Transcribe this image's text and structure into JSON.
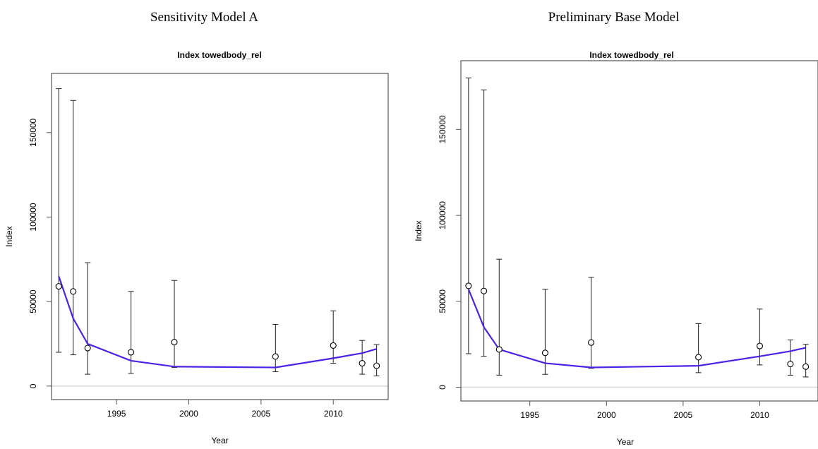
{
  "chart_data": [
    {
      "type": "line",
      "heading": "Sensitivity Model A",
      "title": "Index towedbody_rel",
      "xlabel": "Year",
      "ylabel": "Index",
      "xlim": [
        1990.5,
        2013.8
      ],
      "ylim": [
        -8000,
        185000
      ],
      "xticks": [
        1995,
        2000,
        2005,
        2010
      ],
      "yticks": [
        0,
        50000,
        100000,
        150000
      ],
      "grid": false,
      "observed": {
        "x": [
          1991,
          1992,
          1993,
          1996,
          1999,
          2006,
          2010,
          2012,
          2013
        ],
        "y": [
          59000,
          56000,
          22500,
          20000,
          26000,
          17500,
          24000,
          13500,
          12000
        ],
        "lower": [
          20000,
          18500,
          7000,
          7500,
          11000,
          8500,
          13500,
          7000,
          6000
        ],
        "upper": [
          176000,
          169000,
          73000,
          56000,
          62500,
          36500,
          44500,
          27000,
          24500
        ]
      },
      "fit": {
        "x": [
          1991,
          1992,
          1993,
          1996,
          1999,
          2006,
          2010,
          2012,
          2013
        ],
        "y": [
          65000,
          40000,
          25000,
          15000,
          11500,
          11000,
          16500,
          19500,
          22000
        ]
      },
      "colors": {
        "fit_line": "#4b22e6",
        "observed": "#000000",
        "zero_line": "#d9d9d9"
      }
    },
    {
      "type": "line",
      "heading": "Preliminary Base Model",
      "title": "Index towedbody_rel",
      "xlabel": "Year",
      "ylabel": "Index",
      "xlim": [
        1990.5,
        2013.8
      ],
      "ylim": [
        -8000,
        190000
      ],
      "xticks": [
        1995,
        2000,
        2005,
        2010
      ],
      "yticks": [
        0,
        50000,
        100000,
        150000
      ],
      "grid": false,
      "observed": {
        "x": [
          1991,
          1992,
          1993,
          1996,
          1999,
          2006,
          2010,
          2012,
          2013
        ],
        "y": [
          59000,
          56000,
          22000,
          20000,
          26000,
          17500,
          24000,
          13500,
          12000
        ],
        "lower": [
          19500,
          18000,
          7000,
          7500,
          11000,
          8500,
          13000,
          7000,
          6000
        ],
        "upper": [
          180000,
          173000,
          74500,
          57000,
          64000,
          37000,
          45500,
          27500,
          25000
        ]
      },
      "fit": {
        "x": [
          1991,
          1992,
          1993,
          1996,
          1999,
          2006,
          2010,
          2012,
          2013
        ],
        "y": [
          57000,
          35000,
          22000,
          14000,
          11500,
          12500,
          18000,
          21000,
          23000
        ]
      },
      "colors": {
        "fit_line": "#4b22e6",
        "observed": "#000000",
        "zero_line": "#d9d9d9"
      }
    }
  ]
}
